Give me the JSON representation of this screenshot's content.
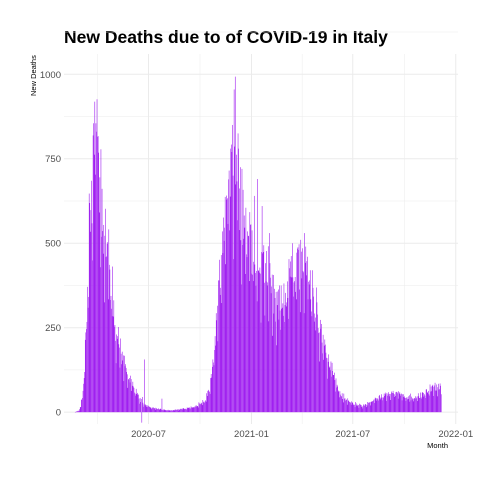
{
  "chart_data": {
    "type": "bar",
    "title": "New Deaths due to of COVID-19 in Italy",
    "xlabel": "Month",
    "ylabel": "New Deaths",
    "bar_color": "#a020f0",
    "grid_color": "#ebebeb",
    "xlim": [
      "2020-02-01",
      "2022-01-05"
    ],
    "ylim": [
      -35,
      1060
    ],
    "x_ticks": [
      {
        "date": "2020-07-01",
        "label": "2020-07"
      },
      {
        "date": "2021-01-01",
        "label": "2021-01"
      },
      {
        "date": "2021-07-01",
        "label": "2021-07"
      },
      {
        "date": "2022-01-01",
        "label": "2022-01"
      }
    ],
    "y_ticks": [
      0,
      250,
      500,
      750,
      1000
    ],
    "y_tick_labels": [
      "0",
      "250",
      "500",
      "750",
      "1000"
    ],
    "anchor_points": [
      [
        "2020-02-21",
        0
      ],
      [
        "2020-02-28",
        5
      ],
      [
        "2020-03-05",
        40
      ],
      [
        "2020-03-10",
        170
      ],
      [
        "2020-03-15",
        370
      ],
      [
        "2020-03-19",
        620
      ],
      [
        "2020-03-23",
        680
      ],
      [
        "2020-03-27",
        880
      ],
      [
        "2020-04-01",
        760
      ],
      [
        "2020-04-05",
        620
      ],
      [
        "2020-04-10",
        580
      ],
      [
        "2020-04-15",
        520
      ],
      [
        "2020-04-20",
        450
      ],
      [
        "2020-04-26",
        360
      ],
      [
        "2020-05-03",
        250
      ],
      [
        "2020-05-10",
        200
      ],
      [
        "2020-05-17",
        150
      ],
      [
        "2020-05-25",
        110
      ],
      [
        "2020-06-05",
        70
      ],
      [
        "2020-06-15",
        40
      ],
      [
        "2020-06-25",
        20
      ],
      [
        "2020-07-10",
        12
      ],
      [
        "2020-07-25",
        8
      ],
      [
        "2020-08-10",
        5
      ],
      [
        "2020-08-25",
        8
      ],
      [
        "2020-09-10",
        12
      ],
      [
        "2020-09-25",
        20
      ],
      [
        "2020-10-08",
        30
      ],
      [
        "2020-10-18",
        70
      ],
      [
        "2020-10-25",
        150
      ],
      [
        "2020-11-01",
        290
      ],
      [
        "2020-11-08",
        460
      ],
      [
        "2020-11-15",
        620
      ],
      [
        "2020-11-22",
        660
      ],
      [
        "2020-11-28",
        720
      ],
      [
        "2020-12-03",
        760
      ],
      [
        "2020-12-08",
        660
      ],
      [
        "2020-12-14",
        600
      ],
      [
        "2020-12-20",
        540
      ],
      [
        "2020-12-27",
        500
      ],
      [
        "2021-01-03",
        460
      ],
      [
        "2021-01-10",
        450
      ],
      [
        "2021-01-17",
        440
      ],
      [
        "2021-01-24",
        430
      ],
      [
        "2021-01-31",
        420
      ],
      [
        "2021-02-07",
        350
      ],
      [
        "2021-02-14",
        320
      ],
      [
        "2021-02-21",
        320
      ],
      [
        "2021-02-28",
        330
      ],
      [
        "2021-03-07",
        360
      ],
      [
        "2021-03-14",
        400
      ],
      [
        "2021-03-21",
        420
      ],
      [
        "2021-03-28",
        440
      ],
      [
        "2021-04-04",
        420
      ],
      [
        "2021-04-11",
        420
      ],
      [
        "2021-04-18",
        350
      ],
      [
        "2021-04-25",
        300
      ],
      [
        "2021-05-02",
        250
      ],
      [
        "2021-05-09",
        200
      ],
      [
        "2021-05-16",
        160
      ],
      [
        "2021-05-23",
        130
      ],
      [
        "2021-05-30",
        100
      ],
      [
        "2021-06-08",
        60
      ],
      [
        "2021-06-18",
        35
      ],
      [
        "2021-07-01",
        25
      ],
      [
        "2021-07-20",
        18
      ],
      [
        "2021-08-05",
        30
      ],
      [
        "2021-08-20",
        45
      ],
      [
        "2021-09-05",
        55
      ],
      [
        "2021-09-20",
        55
      ],
      [
        "2021-10-05",
        45
      ],
      [
        "2021-10-20",
        40
      ],
      [
        "2021-11-05",
        55
      ],
      [
        "2021-11-20",
        70
      ],
      [
        "2021-12-01",
        80
      ],
      [
        "2021-12-06",
        85
      ]
    ],
    "spikes": [
      [
        "2020-03-27",
        919
      ],
      [
        "2020-06-24",
        156
      ],
      [
        "2020-06-20",
        45
      ],
      [
        "2020-07-25",
        40
      ],
      [
        "2020-11-28",
        850
      ],
      [
        "2020-12-03",
        993
      ],
      [
        "2020-12-09",
        780
      ],
      [
        "2021-01-12",
        690
      ],
      [
        "2021-01-20",
        610
      ],
      [
        "2021-02-02",
        530
      ],
      [
        "2021-03-15",
        500
      ],
      [
        "2021-03-30",
        510
      ],
      [
        "2021-04-06",
        530
      ],
      [
        "2021-04-08",
        490
      ],
      [
        "2021-04-20",
        420
      ],
      [
        "2020-03-30",
        830
      ],
      [
        "2020-12-15",
        720
      ],
      [
        "2021-01-06",
        640
      ]
    ],
    "negative": [
      [
        "2020-06-19",
        -31
      ]
    ]
  }
}
